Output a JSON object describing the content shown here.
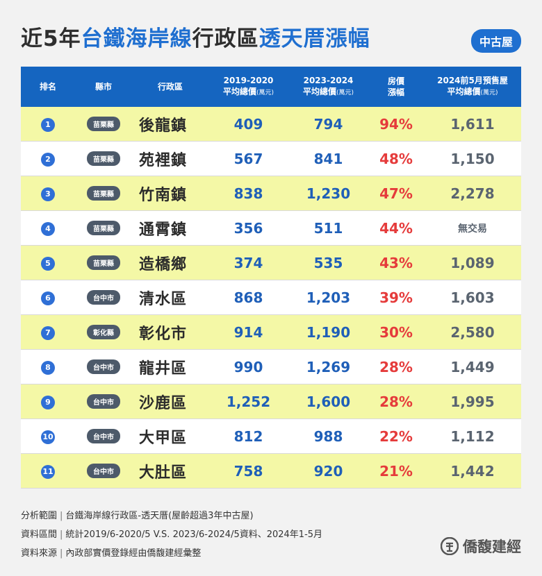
{
  "title": {
    "prefix": "近5年",
    "highlight1": "台鐵海岸線",
    "middle": "行政區",
    "highlight2": "透天厝漲幅",
    "badge": "中古屋"
  },
  "headers": {
    "rank": "排名",
    "county": "縣市",
    "district": "行政區",
    "price_2019_line1": "2019-2020",
    "price_2019_line2": "平均總價",
    "price_2019_unit": "(萬元)",
    "price_2023_line1": "2023-2024",
    "price_2023_line2": "平均總價",
    "price_2023_unit": "(萬元)",
    "change_line1": "房價",
    "change_line2": "漲幅",
    "presale_line1": "2024前5月預售屋",
    "presale_line2": "平均總價",
    "presale_unit": "(萬元)"
  },
  "rows": [
    {
      "rank": "1",
      "county": "苗栗縣",
      "district": "後龍鎮",
      "p2019": "409",
      "p2023": "794",
      "change": "94%",
      "presale": "1,611"
    },
    {
      "rank": "2",
      "county": "苗栗縣",
      "district": "苑裡鎮",
      "p2019": "567",
      "p2023": "841",
      "change": "48%",
      "presale": "1,150"
    },
    {
      "rank": "3",
      "county": "苗栗縣",
      "district": "竹南鎮",
      "p2019": "838",
      "p2023": "1,230",
      "change": "47%",
      "presale": "2,278"
    },
    {
      "rank": "4",
      "county": "苗栗縣",
      "district": "通霄鎮",
      "p2019": "356",
      "p2023": "511",
      "change": "44%",
      "presale": "無交易"
    },
    {
      "rank": "5",
      "county": "苗栗縣",
      "district": "造橋鄉",
      "p2019": "374",
      "p2023": "535",
      "change": "43%",
      "presale": "1,089"
    },
    {
      "rank": "6",
      "county": "台中市",
      "district": "清水區",
      "p2019": "868",
      "p2023": "1,203",
      "change": "39%",
      "presale": "1,603"
    },
    {
      "rank": "7",
      "county": "彰化縣",
      "district": "彰化市",
      "p2019": "914",
      "p2023": "1,190",
      "change": "30%",
      "presale": "2,580"
    },
    {
      "rank": "8",
      "county": "台中市",
      "district": "龍井區",
      "p2019": "990",
      "p2023": "1,269",
      "change": "28%",
      "presale": "1,449"
    },
    {
      "rank": "9",
      "county": "台中市",
      "district": "沙鹿區",
      "p2019": "1,252",
      "p2023": "1,600",
      "change": "28%",
      "presale": "1,995"
    },
    {
      "rank": "10",
      "county": "台中市",
      "district": "大甲區",
      "p2019": "812",
      "p2023": "988",
      "change": "22%",
      "presale": "1,112"
    },
    {
      "rank": "11",
      "county": "台中市",
      "district": "大肚區",
      "p2019": "758",
      "p2023": "920",
      "change": "21%",
      "presale": "1,442"
    }
  ],
  "notes": [
    {
      "label": "分析範圍",
      "text": "台鐵海岸線行政區-透天厝(屋齡超過3年中古屋)"
    },
    {
      "label": "資料區間",
      "text": "統計2019/6-2020/5 V.S. 2023/6-2024/5資料、2024年1-5月"
    },
    {
      "label": "資料來源",
      "text": "內政部實價登錄經由僑馥建經彙整"
    }
  ],
  "logo": {
    "text": "僑馥建經",
    "icon": "company-logo-icon"
  },
  "colors": {
    "header_bg": "#1565c0",
    "accent_blue": "#1f6fd0",
    "row_highlight": "#f4f8a6",
    "change_red": "#e53b3b"
  }
}
